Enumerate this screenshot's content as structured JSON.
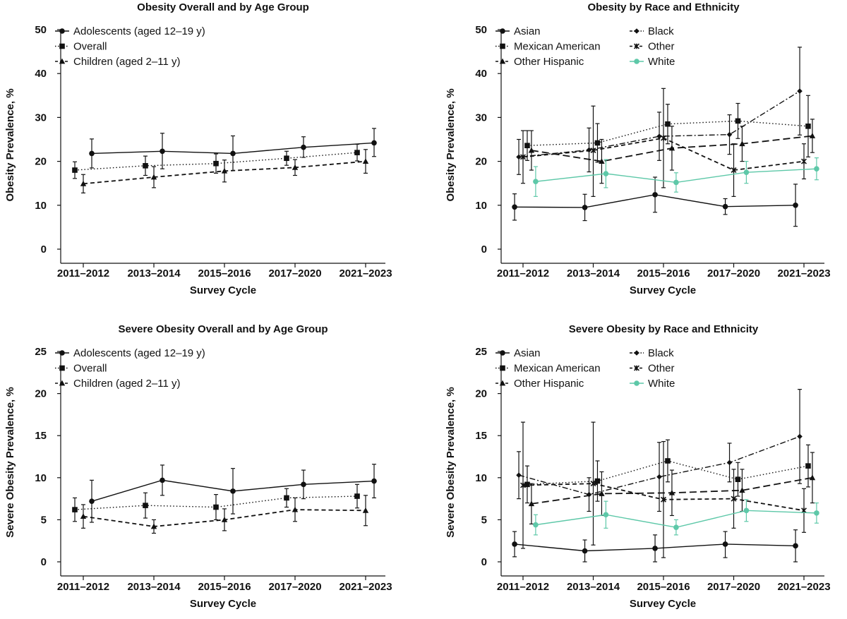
{
  "figure": {
    "xlabel": "Survey Cycle"
  },
  "chart_data": [
    {
      "type": "line",
      "title": "Obesity Overall and by Age Group",
      "xlabel": "Survey Cycle",
      "ylabel": "Obesity Prevalence, %",
      "categories": [
        "2011–2012",
        "2013–2014",
        "2015–2016",
        "2017–2020",
        "2021–2023"
      ],
      "ylim": [
        0,
        50
      ],
      "yticks": [
        0,
        10,
        20,
        30,
        40,
        50
      ],
      "legend_columns": 1,
      "series": [
        {
          "name": "Adolescents (aged 12–19 y)",
          "marker": "circle",
          "dash": "solid",
          "color": "#111111",
          "offset": 0.02,
          "values": [
            21.8,
            22.3,
            21.8,
            23.2,
            24.2
          ],
          "lower": [
            18.5,
            18.3,
            17.9,
            20.9,
            21.1
          ],
          "upper": [
            25.1,
            26.4,
            25.8,
            25.6,
            27.5
          ]
        },
        {
          "name": "Overall",
          "marker": "square",
          "dash": "dotted",
          "color": "#111111",
          "offset": -0.02,
          "values": [
            18.0,
            19.0,
            19.5,
            20.7,
            22.0
          ],
          "lower": [
            16.1,
            16.8,
            17.3,
            19.1,
            20.1
          ],
          "upper": [
            19.9,
            21.2,
            21.7,
            22.3,
            23.9
          ]
        },
        {
          "name": "Children (aged 2–11 y)",
          "marker": "triangle",
          "dash": "dashed",
          "color": "#111111",
          "offset": 0.0,
          "values": [
            14.9,
            16.4,
            17.8,
            18.6,
            20.0
          ],
          "lower": [
            12.8,
            14.0,
            15.3,
            16.8,
            17.3
          ],
          "upper": [
            17.0,
            18.8,
            20.3,
            20.4,
            22.7
          ]
        }
      ]
    },
    {
      "type": "line",
      "title": "Obesity by Race and Ethnicity",
      "xlabel": "Survey Cycle",
      "ylabel": "Obesity Prevalence, %",
      "categories": [
        "2011–2012",
        "2013–2014",
        "2015–2016",
        "2017–2020",
        "2021–2023"
      ],
      "ylim": [
        0,
        50
      ],
      "yticks": [
        0,
        10,
        20,
        30,
        40,
        50
      ],
      "legend_columns": 2,
      "series": [
        {
          "name": "Asian",
          "marker": "circle",
          "dash": "solid",
          "color": "#111111",
          "offset": -0.02,
          "values": [
            9.6,
            9.5,
            12.4,
            9.7,
            10.0
          ],
          "lower": [
            6.6,
            6.5,
            8.4,
            7.9,
            5.2
          ],
          "upper": [
            12.6,
            12.5,
            16.4,
            11.5,
            14.8
          ]
        },
        {
          "name": "Black",
          "marker": "diamond",
          "dash": "dashdot",
          "color": "#111111",
          "offset": -0.01,
          "values": [
            21.0,
            22.6,
            25.7,
            26.1,
            36.0
          ],
          "lower": [
            17.0,
            17.6,
            20.2,
            21.6,
            26.0
          ],
          "upper": [
            25.0,
            27.6,
            31.2,
            30.6,
            46.0
          ]
        },
        {
          "name": "Mexican American",
          "marker": "square",
          "dash": "dotted",
          "color": "#111111",
          "offset": 0.01,
          "values": [
            23.6,
            24.2,
            28.5,
            29.2,
            28.0
          ],
          "lower": [
            20.2,
            19.8,
            24.0,
            25.2,
            21.0
          ],
          "upper": [
            27.0,
            28.6,
            33.0,
            33.2,
            35.0
          ]
        },
        {
          "name": "Other",
          "marker": "star",
          "dash": "dashed",
          "color": "#111111",
          "offset": 0.0,
          "values": [
            21.0,
            22.5,
            25.3,
            18.0,
            20.0
          ],
          "lower": [
            15.0,
            12.0,
            14.0,
            12.0,
            16.0
          ],
          "upper": [
            27.0,
            32.6,
            36.6,
            24.0,
            24.0
          ]
        },
        {
          "name": "Other Hispanic",
          "marker": "triangle",
          "dash": "longdash",
          "color": "#111111",
          "offset": 0.02,
          "values": [
            22.5,
            20.0,
            23.0,
            24.0,
            25.8
          ],
          "lower": [
            18.0,
            15.0,
            18.0,
            20.0,
            22.0
          ],
          "upper": [
            27.0,
            25.0,
            28.0,
            28.0,
            29.6
          ]
        },
        {
          "name": "White",
          "marker": "circle",
          "dash": "solid",
          "color": "#5dc8a8",
          "offset": 0.03,
          "values": [
            15.4,
            17.2,
            15.2,
            17.5,
            18.3
          ],
          "lower": [
            12.0,
            14.0,
            13.0,
            15.0,
            15.8
          ],
          "upper": [
            18.8,
            20.4,
            17.4,
            20.0,
            20.8
          ]
        }
      ]
    },
    {
      "type": "line",
      "title": "Severe Obesity Overall and by Age Group",
      "xlabel": "Survey Cycle",
      "ylabel": "Severe Obesity Prevalence, %",
      "categories": [
        "2011–2012",
        "2013–2014",
        "2015–2016",
        "2017–2020",
        "2021–2023"
      ],
      "ylim": [
        0,
        25
      ],
      "yticks": [
        0,
        5,
        10,
        15,
        20,
        25
      ],
      "legend_columns": 1,
      "series": [
        {
          "name": "Adolescents (aged 12–19 y)",
          "marker": "circle",
          "dash": "solid",
          "color": "#111111",
          "offset": 0.02,
          "values": [
            7.2,
            9.7,
            8.4,
            9.2,
            9.6
          ],
          "lower": [
            4.7,
            7.9,
            5.7,
            7.5,
            7.6
          ],
          "upper": [
            9.7,
            11.5,
            11.1,
            10.9,
            11.6
          ]
        },
        {
          "name": "Overall",
          "marker": "square",
          "dash": "dotted",
          "color": "#111111",
          "offset": -0.02,
          "values": [
            6.2,
            6.7,
            6.5,
            7.6,
            7.8
          ],
          "lower": [
            4.8,
            5.2,
            5.0,
            6.5,
            6.4
          ],
          "upper": [
            7.6,
            8.2,
            8.0,
            8.7,
            9.2
          ]
        },
        {
          "name": "Children (aged 2–11 y)",
          "marker": "triangle",
          "dash": "dashed",
          "color": "#111111",
          "offset": 0.0,
          "values": [
            5.4,
            4.2,
            5.0,
            6.2,
            6.1
          ],
          "lower": [
            4.0,
            3.4,
            3.7,
            4.8,
            4.3
          ],
          "upper": [
            6.8,
            5.0,
            6.3,
            7.6,
            7.9
          ]
        }
      ]
    },
    {
      "type": "line",
      "title": "Severe Obesity by Race and Ethnicity",
      "xlabel": "Survey Cycle",
      "ylabel": "Severe Obesity Prevalence, %",
      "categories": [
        "2011–2012",
        "2013–2014",
        "2015–2016",
        "2017–2020",
        "2021–2023"
      ],
      "ylim": [
        0,
        25
      ],
      "yticks": [
        0,
        5,
        10,
        15,
        20,
        25
      ],
      "legend_columns": 2,
      "series": [
        {
          "name": "Asian",
          "marker": "circle",
          "dash": "solid",
          "color": "#111111",
          "offset": -0.02,
          "values": [
            2.1,
            1.3,
            1.6,
            2.1,
            1.9
          ],
          "lower": [
            0.6,
            0.0,
            0.0,
            0.5,
            0.0
          ],
          "upper": [
            3.6,
            2.6,
            3.2,
            3.6,
            3.8
          ]
        },
        {
          "name": "Black",
          "marker": "diamond",
          "dash": "dashdot",
          "color": "#111111",
          "offset": -0.01,
          "values": [
            10.3,
            8.0,
            10.1,
            11.8,
            14.9
          ],
          "lower": [
            7.5,
            6.0,
            6.0,
            9.5,
            9.3
          ],
          "upper": [
            13.1,
            10.0,
            14.2,
            14.1,
            20.5
          ]
        },
        {
          "name": "Mexican American",
          "marker": "square",
          "dash": "dotted",
          "color": "#111111",
          "offset": 0.01,
          "values": [
            9.2,
            9.6,
            12.0,
            9.8,
            11.4
          ],
          "lower": [
            7.0,
            7.2,
            9.5,
            7.8,
            8.9
          ],
          "upper": [
            11.4,
            12.0,
            14.5,
            11.8,
            13.9
          ]
        },
        {
          "name": "Other",
          "marker": "star",
          "dash": "dashed",
          "color": "#111111",
          "offset": 0.0,
          "values": [
            9.1,
            9.3,
            7.4,
            7.5,
            6.1
          ],
          "lower": [
            1.6,
            2.0,
            0.5,
            4.0,
            3.5
          ],
          "upper": [
            16.6,
            16.6,
            14.3,
            11.0,
            8.7
          ]
        },
        {
          "name": "Other Hispanic",
          "marker": "triangle",
          "dash": "longdash",
          "color": "#111111",
          "offset": 0.02,
          "values": [
            6.9,
            8.1,
            8.2,
            8.5,
            10.0
          ],
          "lower": [
            4.5,
            5.5,
            5.5,
            6.0,
            7.0
          ],
          "upper": [
            9.3,
            10.7,
            10.9,
            11.0,
            13.0
          ]
        },
        {
          "name": "White",
          "marker": "circle",
          "dash": "solid",
          "color": "#5dc8a8",
          "offset": 0.03,
          "values": [
            4.4,
            5.6,
            4.1,
            6.1,
            5.8
          ],
          "lower": [
            3.2,
            4.0,
            3.2,
            4.8,
            4.6
          ],
          "upper": [
            5.6,
            7.2,
            5.0,
            7.4,
            7.0
          ]
        }
      ]
    }
  ]
}
